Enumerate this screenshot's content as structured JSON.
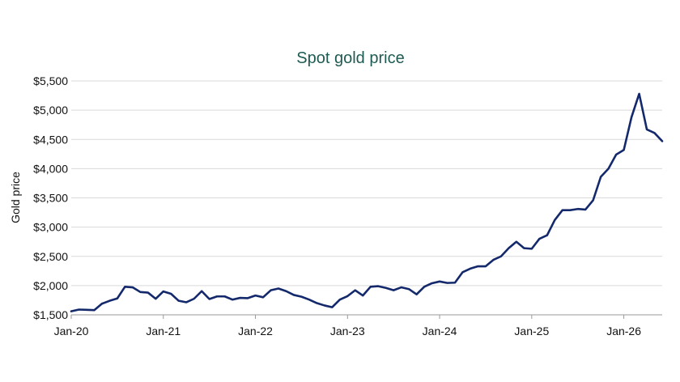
{
  "chart_data": {
    "type": "line",
    "title": "Spot gold price",
    "xlabel": "",
    "ylabel": "Gold price",
    "ylim": [
      1500,
      5500
    ],
    "xlim": [
      "2020-01",
      "2026-06"
    ],
    "grid": true,
    "colors": {
      "title": "#1e5b52",
      "line": "#14296b"
    },
    "y_ticks": [
      "$1,500",
      "$2,000",
      "$2,500",
      "$3,000",
      "$3,500",
      "$4,000",
      "$4,500",
      "$5,000",
      "$5,500"
    ],
    "y_tick_values": [
      1500,
      2000,
      2500,
      3000,
      3500,
      4000,
      4500,
      5000,
      5500
    ],
    "x_ticks": [
      "Jan-20",
      "Jan-21",
      "Jan-22",
      "Jan-23",
      "Jan-24",
      "Jan-25",
      "Jan-26"
    ],
    "x_tick_dates": [
      "2020-01",
      "2021-01",
      "2022-01",
      "2023-01",
      "2024-01",
      "2025-01",
      "2026-01"
    ],
    "series": [
      {
        "x": [
          "2020-01",
          "2020-02",
          "2020-03",
          "2020-04",
          "2020-05",
          "2020-06",
          "2020-07",
          "2020-08",
          "2020-09",
          "2020-10",
          "2020-11",
          "2020-12",
          "2021-01",
          "2021-02",
          "2021-03",
          "2021-04",
          "2021-05",
          "2021-06",
          "2021-07",
          "2021-08",
          "2021-09",
          "2021-10",
          "2021-11",
          "2021-12",
          "2022-01",
          "2022-02",
          "2022-03",
          "2022-04",
          "2022-05",
          "2022-06",
          "2022-07",
          "2022-08",
          "2022-09",
          "2022-10",
          "2022-11",
          "2022-12",
          "2023-01",
          "2023-02",
          "2023-03",
          "2023-04",
          "2023-05",
          "2023-06",
          "2023-07",
          "2023-08",
          "2023-09",
          "2023-10",
          "2023-11",
          "2023-12",
          "2024-01",
          "2024-02",
          "2024-03",
          "2024-04",
          "2024-05",
          "2024-06",
          "2024-07",
          "2024-08",
          "2024-09",
          "2024-10",
          "2024-11",
          "2024-12",
          "2025-01",
          "2025-02",
          "2025-03",
          "2025-04",
          "2025-05",
          "2025-06",
          "2025-07",
          "2025-08",
          "2025-09",
          "2025-10",
          "2025-11",
          "2025-12",
          "2026-01",
          "2026-02",
          "2026-03",
          "2026-04",
          "2026-05",
          "2026-06"
        ],
        "values": [
          1560,
          1590,
          1585,
          1580,
          1690,
          1740,
          1780,
          1980,
          1970,
          1890,
          1880,
          1775,
          1900,
          1860,
          1740,
          1715,
          1775,
          1905,
          1770,
          1815,
          1815,
          1760,
          1790,
          1785,
          1830,
          1800,
          1920,
          1950,
          1905,
          1840,
          1810,
          1760,
          1700,
          1660,
          1630,
          1760,
          1820,
          1920,
          1830,
          1980,
          1990,
          1960,
          1920,
          1970,
          1940,
          1850,
          1980,
          2040,
          2070,
          2045,
          2050,
          2230,
          2290,
          2330,
          2330,
          2440,
          2500,
          2640,
          2750,
          2640,
          2630,
          2800,
          2860,
          3120,
          3290,
          3290,
          3310,
          3300,
          3460,
          3860,
          4000,
          4240,
          4320,
          4880,
          5280,
          4670,
          4610,
          4470
        ]
      }
    ]
  }
}
